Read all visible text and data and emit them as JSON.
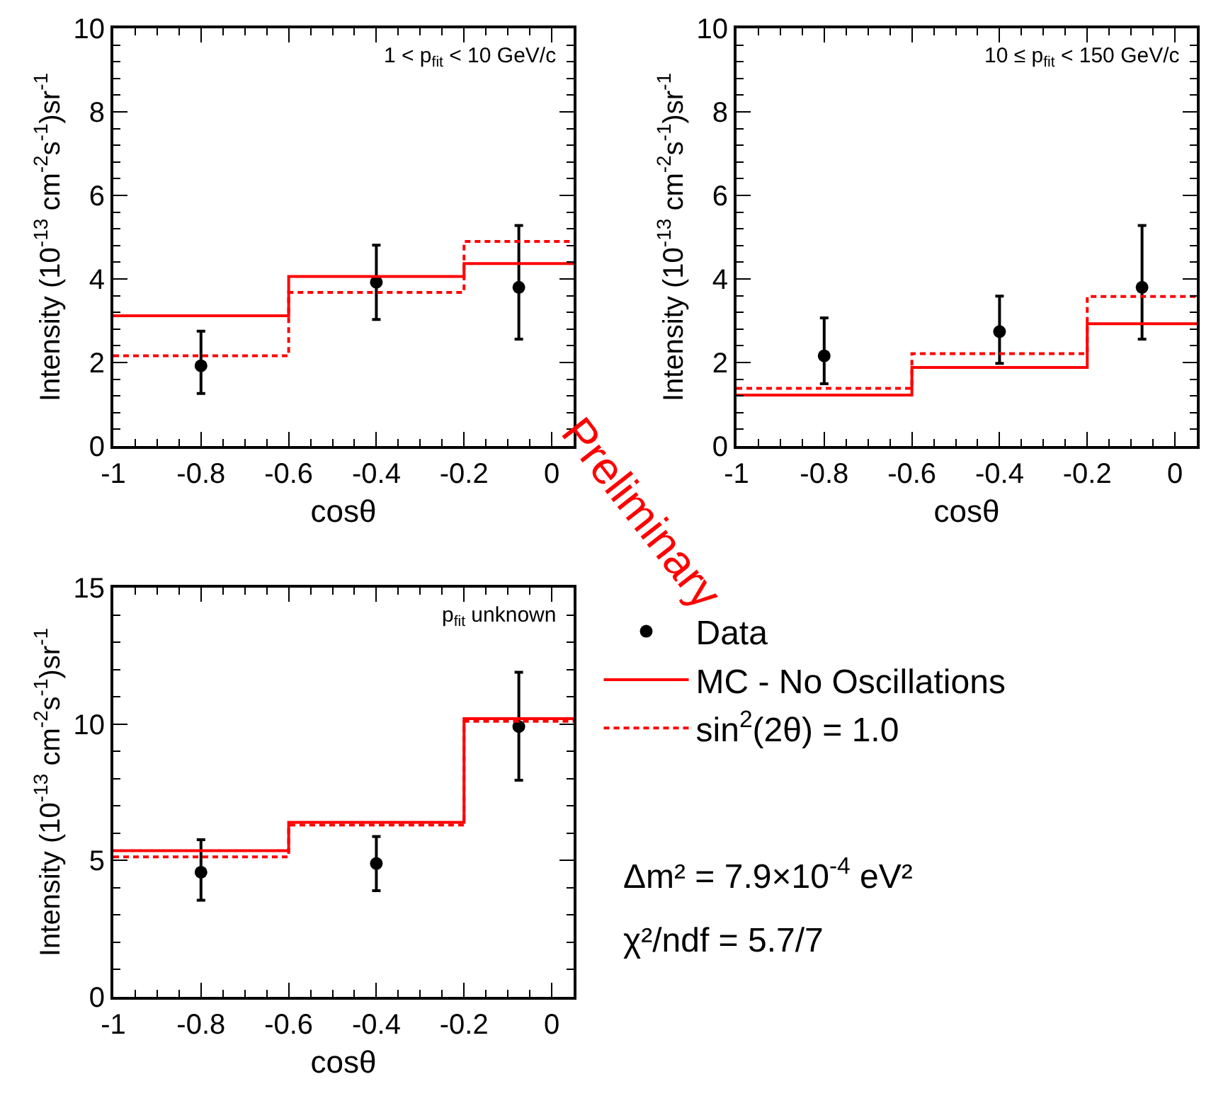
{
  "chart_data": [
    {
      "type": "step",
      "xlabel": "cosθ",
      "ylabel": "Intensity (10$^{-13}$ cm$^{-2}$s$^{-1}$)sr$^{-1}$",
      "xlim": [
        -1,
        0.05
      ],
      "xticks": [
        -1,
        -0.8,
        -0.6,
        -0.4,
        -0.2,
        0
      ],
      "ylim": [
        0,
        10
      ],
      "yticks": [
        0,
        2,
        4,
        6,
        8,
        10
      ],
      "grid": false,
      "legend": false,
      "annotations": [
        "1 < p$_{fit}$ < 10 GeV/c",
        "Preliminary"
      ],
      "series": [
        {
          "type": "scatter",
          "color": "#000000",
          "marker": "circle",
          "x": [
            -0.8,
            -0.4,
            -0.075
          ],
          "values": [
            1.92,
            3.92,
            3.8
          ],
          "errors": [
            [
              1.26,
              2.75
            ],
            [
              3.03,
              4.81
            ],
            [
              2.56,
              5.28
            ]
          ]
        },
        {
          "type": "step",
          "color": "#ff0000",
          "line_style": "solid",
          "x": [
            -1,
            -0.6,
            -0.2,
            0.05
          ],
          "values": [
            3.12,
            4.06,
            4.37,
            4.37
          ]
        },
        {
          "type": "step",
          "color": "#ff0000",
          "line_style": "dashed",
          "x": [
            -1,
            -0.6,
            -0.2,
            0.05
          ],
          "values": [
            2.16,
            3.68,
            4.9,
            4.9
          ]
        }
      ]
    },
    {
      "type": "step",
      "xlabel": "cosθ",
      "ylabel": "Intensity (10$^{-13}$ cm$^{-2}$s$^{-1}$)sr$^{-1}$",
      "xlim": [
        -1,
        0.05
      ],
      "xticks": [
        -1,
        -0.8,
        -0.6,
        -0.4,
        -0.2,
        0
      ],
      "ylim": [
        0,
        10
      ],
      "yticks": [
        0,
        2,
        4,
        6,
        8,
        10
      ],
      "grid": false,
      "legend": false,
      "annotations": [
        "10 ≤ p$_{fit}$ < 150 GeV/c"
      ],
      "series": [
        {
          "type": "scatter",
          "color": "#000000",
          "marker": "circle",
          "x": [
            -0.8,
            -0.4,
            -0.075
          ],
          "values": [
            2.16,
            2.74,
            3.8
          ],
          "errors": [
            [
              1.49,
              3.07
            ],
            [
              1.98,
              3.59
            ],
            [
              2.56,
              5.28
            ]
          ]
        },
        {
          "type": "step",
          "color": "#ff0000",
          "line_style": "solid",
          "x": [
            -1,
            -0.6,
            -0.2,
            0.05
          ],
          "values": [
            1.22,
            1.88,
            2.93,
            2.93
          ]
        },
        {
          "type": "step",
          "color": "#ff0000",
          "line_style": "dashed",
          "x": [
            -1,
            -0.6,
            -0.2,
            0.05
          ],
          "values": [
            1.38,
            2.21,
            3.58,
            3.58
          ]
        }
      ]
    },
    {
      "type": "step",
      "xlabel": "cosθ",
      "ylabel": "Intensity (10$^{-13}$ cm$^{-2}$s$^{-1}$)sr$^{-1}$",
      "xlim": [
        -1,
        0.05
      ],
      "xticks": [
        -1,
        -0.8,
        -0.6,
        -0.4,
        -0.2,
        0
      ],
      "ylim": [
        0,
        15
      ],
      "yticks": [
        0,
        5,
        10,
        15
      ],
      "grid": false,
      "legend": "right",
      "annotations": [
        "p$_{fit}$ unknown",
        "Δm² = 7.9×10$^{-4}$ eV²",
        "χ²/ndf = 5.7/7"
      ],
      "series": [
        {
          "name": "Data",
          "type": "scatter",
          "color": "#000000",
          "marker": "circle",
          "x": [
            -0.8,
            -0.4,
            -0.075
          ],
          "values": [
            4.57,
            4.89,
            9.91
          ],
          "errors": [
            [
              3.54,
              5.76
            ],
            [
              3.89,
              5.88
            ],
            [
              7.94,
              11.9
            ]
          ]
        },
        {
          "name": "MC - No Oscillations",
          "type": "step",
          "color": "#ff0000",
          "line_style": "solid",
          "x": [
            -1,
            -0.6,
            -0.2,
            0.05
          ],
          "values": [
            5.36,
            6.4,
            10.2,
            10.2
          ]
        },
        {
          "name": "sin$^{2}$(2θ) = 1.0",
          "type": "step",
          "color": "#ff0000",
          "line_style": "dashed",
          "x": [
            -1,
            -0.6,
            -0.2,
            0.05
          ],
          "values": [
            5.13,
            6.3,
            10.1,
            10.1
          ]
        }
      ]
    }
  ]
}
